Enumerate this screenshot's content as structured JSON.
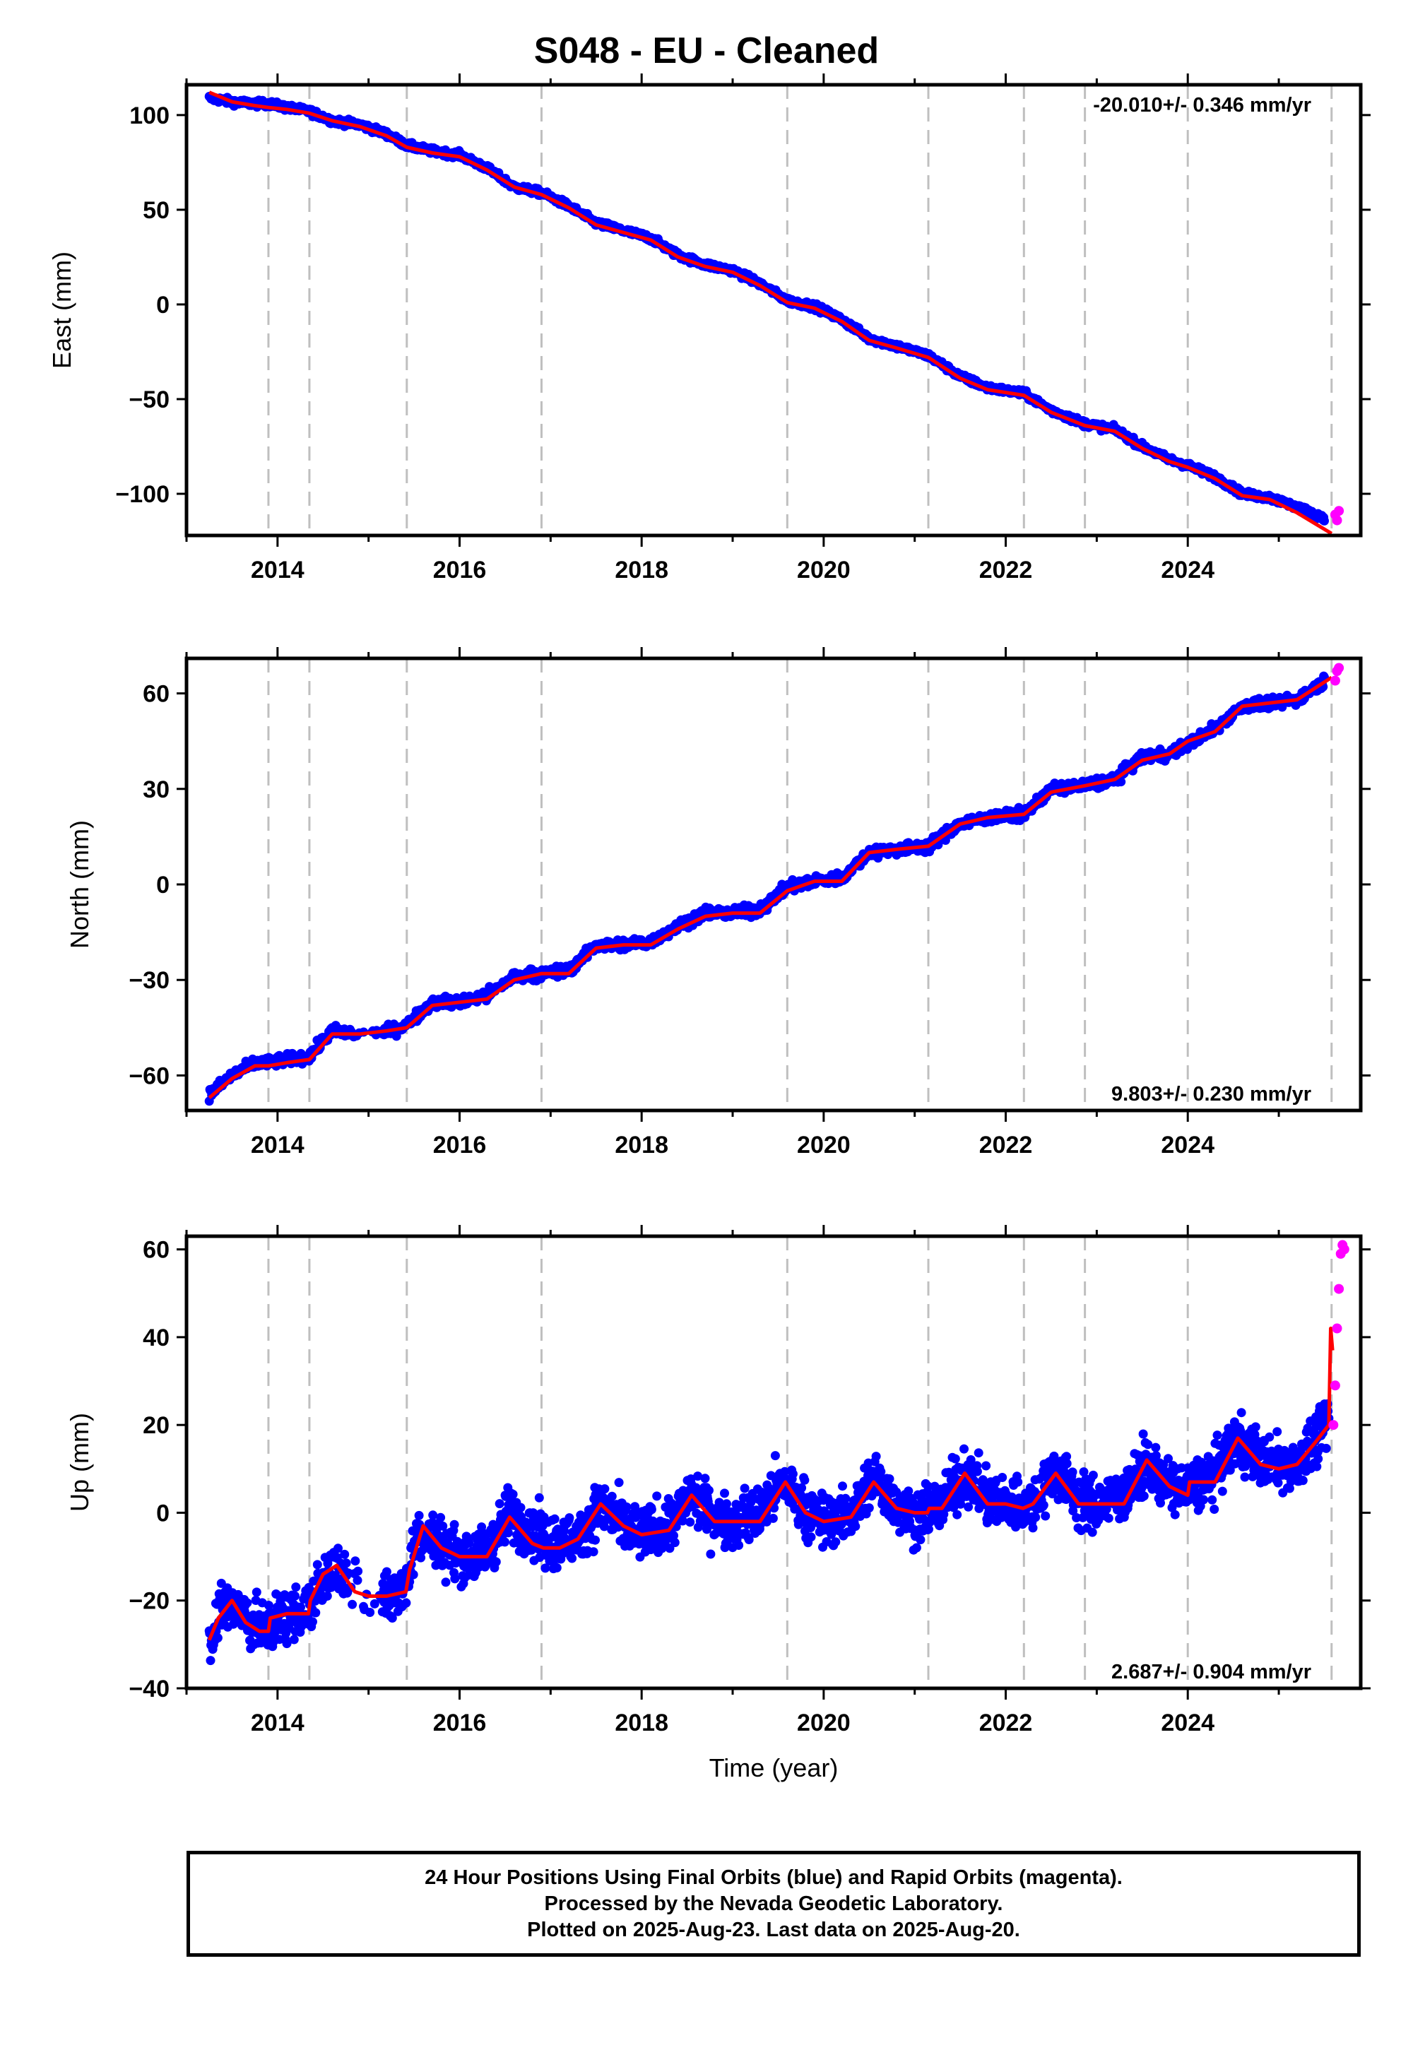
{
  "title": "S048  - EU - Cleaned",
  "xlabel": "Time (year)",
  "footer": {
    "line1": "24 Hour Positions Using Final Orbits (blue) and Rapid Orbits (magenta).",
    "line2": "Processed by the Nevada Geodetic Laboratory.",
    "line3": "Plotted on 2025-Aug-23. Last data on 2025-Aug-20."
  },
  "colors": {
    "final": "#0000ff",
    "rapid": "#ff00ff",
    "model": "#ff0000",
    "event": "#bfbfbf"
  },
  "chart_data": [
    {
      "type": "scatter",
      "ylabel": "East (mm)",
      "rate_label": "-20.010+/- 0.346 mm/yr",
      "xlim": [
        2013.0,
        2025.9
      ],
      "ylim": [
        -122,
        116
      ],
      "xticks": [
        2014,
        2016,
        2018,
        2020,
        2022,
        2024
      ],
      "yticks": [
        100,
        50,
        0,
        -50,
        -100
      ],
      "ytick_labels": [
        "100",
        "50",
        "0",
        "−50",
        "−100"
      ],
      "event_lines": [
        2013.9,
        2014.35,
        2015.42,
        2016.9,
        2019.6,
        2021.15,
        2022.2,
        2022.87,
        2024.0,
        2025.58
      ],
      "series": [
        {
          "name": "Final Orbits",
          "x": [
            2013.25,
            2013.5,
            2013.75,
            2013.9,
            2014.1,
            2014.35,
            2014.6,
            2014.9,
            2015.2,
            2015.42,
            2015.7,
            2016.0,
            2016.3,
            2016.6,
            2016.9,
            2017.2,
            2017.5,
            2017.8,
            2018.1,
            2018.4,
            2018.7,
            2019.0,
            2019.3,
            2019.6,
            2019.9,
            2020.2,
            2020.5,
            2020.8,
            2021.15,
            2021.5,
            2021.8,
            2022.2,
            2022.5,
            2022.87,
            2023.2,
            2023.5,
            2023.8,
            2024.0,
            2024.3,
            2024.6,
            2024.9,
            2025.2,
            2025.5
          ],
          "values": [
            109,
            107,
            106,
            106,
            104,
            102,
            97,
            95,
            90,
            84,
            81,
            79,
            72,
            62,
            59,
            52,
            43,
            39,
            35,
            26,
            21,
            18,
            11,
            2,
            -1,
            -8,
            -18,
            -22,
            -27,
            -38,
            -44,
            -47,
            -56,
            -63,
            -66,
            -75,
            -82,
            -85,
            -91,
            -100,
            -102,
            -107,
            -113
          ]
        },
        {
          "name": "Rapid Orbits",
          "x": [
            2025.62,
            2025.64,
            2025.66
          ],
          "values": [
            -111,
            -114,
            -109
          ]
        },
        {
          "name": "Model",
          "x": [
            2013.25,
            2013.5,
            2013.75,
            2013.9,
            2014.1,
            2014.35,
            2014.6,
            2014.9,
            2015.2,
            2015.42,
            2015.7,
            2016.0,
            2016.3,
            2016.6,
            2016.9,
            2017.2,
            2017.5,
            2017.8,
            2018.1,
            2018.4,
            2018.7,
            2019.0,
            2019.3,
            2019.6,
            2019.9,
            2020.2,
            2020.5,
            2020.8,
            2021.15,
            2021.5,
            2021.8,
            2022.2,
            2022.5,
            2022.87,
            2023.2,
            2023.5,
            2023.8,
            2024.0,
            2024.3,
            2024.6,
            2024.9,
            2025.2,
            2025.58
          ],
          "values": [
            112,
            107,
            105,
            104,
            103,
            101,
            97,
            94,
            89,
            83,
            80,
            78,
            71,
            62,
            58,
            51,
            42,
            38,
            34,
            25,
            20,
            17,
            10,
            1,
            -2,
            -9,
            -19,
            -23,
            -28,
            -39,
            -45,
            -48,
            -57,
            -64,
            -67,
            -76,
            -83,
            -86,
            -92,
            -101,
            -103,
            -110,
            -121
          ]
        }
      ]
    },
    {
      "type": "scatter",
      "ylabel": "North (mm)",
      "rate_label": "9.803+/- 0.230 mm/yr",
      "xlim": [
        2013.0,
        2025.9
      ],
      "ylim": [
        -71,
        71
      ],
      "xticks": [
        2014,
        2016,
        2018,
        2020,
        2022,
        2024
      ],
      "yticks": [
        60,
        30,
        0,
        -30,
        -60
      ],
      "ytick_labels": [
        "60",
        "30",
        "0",
        "−30",
        "−60"
      ],
      "event_lines": [
        2013.9,
        2014.35,
        2015.42,
        2016.9,
        2019.6,
        2021.15,
        2022.2,
        2022.87,
        2024.0,
        2025.58
      ],
      "series": [
        {
          "name": "Final Orbits",
          "x": [
            2013.25,
            2013.5,
            2013.75,
            2013.9,
            2014.1,
            2014.35,
            2014.6,
            2014.9,
            2015.2,
            2015.42,
            2015.7,
            2016.0,
            2016.3,
            2016.6,
            2016.9,
            2017.2,
            2017.5,
            2017.8,
            2018.1,
            2018.4,
            2018.7,
            2019.0,
            2019.3,
            2019.6,
            2019.9,
            2020.2,
            2020.5,
            2020.8,
            2021.15,
            2021.5,
            2021.8,
            2022.2,
            2022.5,
            2022.87,
            2023.2,
            2023.5,
            2023.8,
            2024.0,
            2024.3,
            2024.6,
            2024.9,
            2025.2,
            2025.5
          ],
          "values": [
            -66,
            -60,
            -56,
            -56,
            -55,
            -54,
            -46,
            -47,
            -46,
            -44,
            -37,
            -37,
            -35,
            -29,
            -28,
            -27,
            -19,
            -19,
            -18,
            -13,
            -9,
            -9,
            -8,
            -1,
            1,
            2,
            10,
            11,
            12,
            19,
            21,
            22,
            30,
            31,
            33,
            40,
            41,
            44,
            49,
            56,
            57,
            58,
            64
          ]
        },
        {
          "name": "Rapid Orbits",
          "x": [
            2025.62,
            2025.64,
            2025.66
          ],
          "values": [
            64,
            67,
            68
          ]
        },
        {
          "name": "Model",
          "x": [
            2013.25,
            2013.5,
            2013.75,
            2013.9,
            2014.1,
            2014.35,
            2014.6,
            2014.9,
            2015.2,
            2015.42,
            2015.7,
            2016.0,
            2016.3,
            2016.6,
            2016.9,
            2017.2,
            2017.5,
            2017.8,
            2018.1,
            2018.4,
            2018.7,
            2019.0,
            2019.3,
            2019.6,
            2019.9,
            2020.2,
            2020.5,
            2020.8,
            2021.15,
            2021.5,
            2021.8,
            2022.2,
            2022.5,
            2022.87,
            2023.2,
            2023.5,
            2023.8,
            2024.0,
            2024.3,
            2024.6,
            2024.9,
            2025.2,
            2025.58
          ],
          "values": [
            -67,
            -61,
            -57,
            -57,
            -56,
            -55,
            -47,
            -47,
            -46,
            -45,
            -38,
            -37,
            -36,
            -30,
            -28,
            -28,
            -20,
            -19,
            -19,
            -14,
            -10,
            -9,
            -9,
            -2,
            1,
            1,
            10,
            11,
            12,
            19,
            21,
            22,
            29,
            31,
            33,
            39,
            41,
            45,
            48,
            56,
            57,
            58,
            65
          ]
        }
      ]
    },
    {
      "type": "scatter",
      "ylabel": "Up (mm)",
      "rate_label": "2.687+/- 0.904 mm/yr",
      "xlim": [
        2013.0,
        2025.9
      ],
      "ylim": [
        -40,
        63
      ],
      "xticks": [
        2014,
        2016,
        2018,
        2020,
        2022,
        2024
      ],
      "yticks": [
        60,
        40,
        20,
        0,
        -20,
        -40
      ],
      "ytick_labels": [
        "60",
        "40",
        "20",
        "0",
        "−20",
        "−40"
      ],
      "event_lines": [
        2013.9,
        2014.35,
        2015.42,
        2016.9,
        2019.6,
        2021.15,
        2022.2,
        2022.87,
        2024.0,
        2025.58
      ],
      "series": [
        {
          "name": "Final Orbits",
          "x": [
            2013.25,
            2013.4,
            2013.55,
            2013.7,
            2013.85,
            2014.0,
            2014.2,
            2014.35,
            2014.55,
            2014.75,
            2015.0,
            2015.2,
            2015.4,
            2015.55,
            2015.8,
            2016.0,
            2016.3,
            2016.55,
            2016.8,
            2017.0,
            2017.3,
            2017.55,
            2017.8,
            2018.0,
            2018.3,
            2018.55,
            2018.8,
            2019.0,
            2019.3,
            2019.55,
            2019.8,
            2020.0,
            2020.3,
            2020.55,
            2020.8,
            2021.0,
            2021.3,
            2021.55,
            2021.8,
            2022.0,
            2022.3,
            2022.55,
            2022.8,
            2023.0,
            2023.3,
            2023.55,
            2023.8,
            2024.0,
            2024.3,
            2024.55,
            2024.8,
            2025.0,
            2025.2,
            2025.4,
            2025.55
          ],
          "values": [
            -28,
            -22,
            -21,
            -25,
            -27,
            -24,
            -23,
            -22,
            -13,
            -15,
            -19,
            -19,
            -17,
            -4,
            -7,
            -10,
            -9,
            0,
            -4,
            -7,
            -6,
            2,
            -3,
            -5,
            -3,
            4,
            -1,
            -2,
            0,
            7,
            1,
            -2,
            0,
            8,
            2,
            -1,
            2,
            9,
            3,
            2,
            2,
            10,
            3,
            2,
            4,
            11,
            6,
            5,
            9,
            17,
            12,
            11,
            11,
            16,
            22
          ]
        },
        {
          "name": "Rapid Orbits",
          "x": [
            2025.6,
            2025.62,
            2025.64,
            2025.66,
            2025.68,
            2025.7,
            2025.72
          ],
          "values": [
            20,
            29,
            42,
            51,
            59,
            61,
            60
          ]
        },
        {
          "name": "Model",
          "x": [
            2013.25,
            2013.35,
            2013.5,
            2013.65,
            2013.8,
            2013.9,
            2013.92,
            2014.1,
            2014.34,
            2014.36,
            2014.5,
            2014.65,
            2014.85,
            2015.0,
            2015.2,
            2015.41,
            2015.45,
            2015.6,
            2015.8,
            2016.0,
            2016.3,
            2016.55,
            2016.8,
            2016.92,
            2017.1,
            2017.3,
            2017.55,
            2017.8,
            2018.0,
            2018.3,
            2018.55,
            2018.8,
            2019.0,
            2019.3,
            2019.58,
            2019.8,
            2020.0,
            2020.3,
            2020.55,
            2020.8,
            2021.0,
            2021.14,
            2021.16,
            2021.3,
            2021.55,
            2021.8,
            2022.0,
            2022.19,
            2022.3,
            2022.55,
            2022.8,
            2022.86,
            2023.0,
            2023.3,
            2023.55,
            2023.8,
            2024.0,
            2024.02,
            2024.3,
            2024.55,
            2024.8,
            2025.0,
            2025.2,
            2025.4,
            2025.55,
            2025.57,
            2025.59
          ],
          "values": [
            -29,
            -24,
            -20,
            -25,
            -27,
            -27,
            -24,
            -23,
            -23,
            -20,
            -14,
            -12,
            -18,
            -19,
            -19,
            -18,
            -13,
            -3,
            -8,
            -10,
            -10,
            -1,
            -7,
            -8,
            -8,
            -6,
            2,
            -3,
            -5,
            -4,
            4,
            -2,
            -2,
            -2,
            7,
            0,
            -2,
            -1,
            7,
            1,
            0,
            0,
            1,
            1,
            9,
            2,
            2,
            1,
            2,
            9,
            2,
            2,
            2,
            2,
            12,
            6,
            4,
            7,
            7,
            17,
            11,
            10,
            11,
            16,
            20,
            42,
            37
          ]
        }
      ]
    }
  ]
}
